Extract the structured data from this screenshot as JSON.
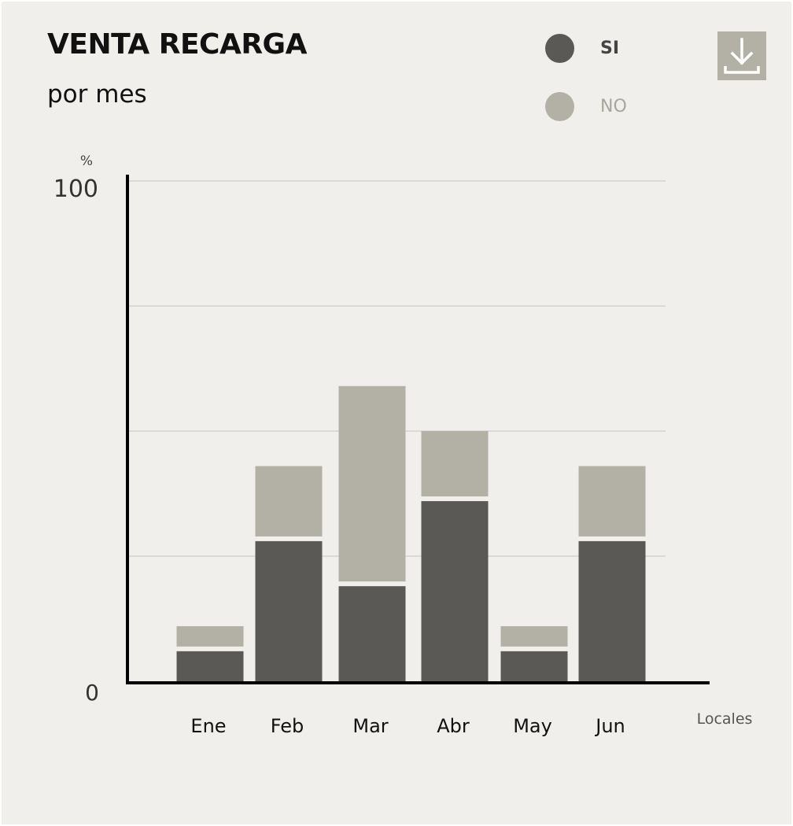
{
  "header": {
    "title": "VENTA RECARGA",
    "subtitle": "por mes"
  },
  "legend": [
    {
      "label": "SI",
      "color": "#5a5955",
      "text_color": "#444444",
      "bold": true
    },
    {
      "label": "NO",
      "color": "#b3b0a5",
      "text_color": "#a9a69c",
      "bold": false
    }
  ],
  "download": {
    "icon": "download-icon"
  },
  "colors": {
    "background": "#f0efeb",
    "si": "#5a5955",
    "no": "#b3b0a5",
    "axis": "#000000",
    "grid": "#d3d2cd"
  },
  "chart_data": {
    "type": "bar",
    "stacked": true,
    "categories": [
      "Ene",
      "Feb",
      "Mar",
      "Abr",
      "May",
      "Jun"
    ],
    "series": [
      {
        "name": "SI",
        "values": [
          6,
          28,
          19,
          36,
          6,
          28
        ]
      },
      {
        "name": "NO",
        "values": [
          5,
          15,
          40,
          14,
          5,
          15
        ]
      }
    ],
    "ylim": [
      0,
      100
    ],
    "y_unit_label": "%",
    "y_tick_labels": [
      "0",
      "100"
    ],
    "gridlines": [
      25,
      50,
      75,
      100
    ],
    "xlabel": "Locales",
    "grid": true,
    "legend_position": "top-right"
  }
}
